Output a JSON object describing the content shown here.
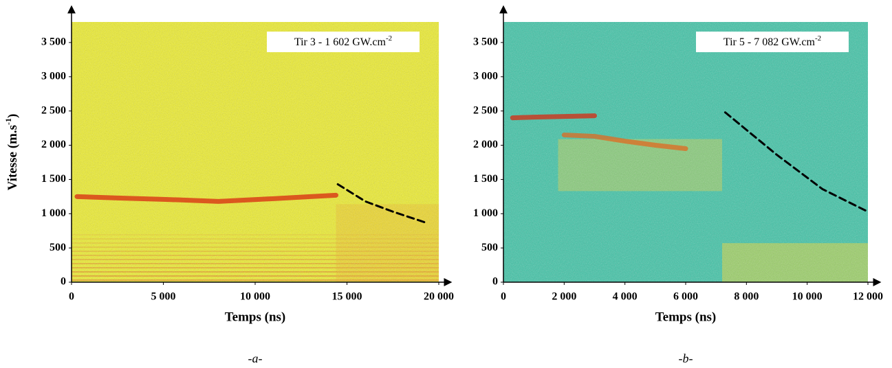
{
  "chart_data": [
    {
      "type": "spectrogram",
      "caption": "-a-",
      "annotation": "Tir 3 - 1 602  GW.cm",
      "annotation_sup": "-2",
      "x_label": "Temps (ns)",
      "y_label": "Vitesse (m.s",
      "y_label_sup": "-1",
      "y_label_end": ")",
      "background": "#eeee2a",
      "xlim": [
        0,
        20000
      ],
      "ylim": [
        0,
        3800
      ],
      "xticks": [
        0,
        {
          "value": 5000,
          "label": "5 000"
        },
        {
          "value": 10000,
          "label": "10 000"
        },
        {
          "value": 15000,
          "label": "15 000"
        },
        {
          "value": 20000,
          "label": "20 000"
        }
      ],
      "yticks": [
        0,
        500,
        {
          "value": 1000,
          "label": "1 000"
        },
        {
          "value": 1500,
          "label": "1 500"
        },
        {
          "value": 2000,
          "label": "2 000"
        },
        {
          "value": 2500,
          "label": "2 500"
        },
        {
          "value": 3000,
          "label": "3 000"
        },
        {
          "value": 3500,
          "label": "3 500"
        }
      ],
      "series": [
        {
          "color": "#d82a10",
          "x": [
            300,
            2500,
            5000,
            8000,
            11000,
            13000,
            14400
          ],
          "values": [
            1250,
            1230,
            1210,
            1180,
            1220,
            1250,
            1270
          ]
        },
        {
          "color": "#000000",
          "dash": true,
          "x": [
            14500,
            16000,
            17500,
            19400
          ],
          "values": [
            1430,
            1180,
            1030,
            860
          ]
        }
      ]
    },
    {
      "type": "spectrogram",
      "caption": "-b-",
      "annotation": "Tir 5 - 7 082  GW.cm",
      "annotation_sup": "-2",
      "x_label": "Temps (ns)",
      "background": "#3cc4a6",
      "xlim": [
        0,
        12000
      ],
      "ylim": [
        0,
        3800
      ],
      "xticks": [
        0,
        {
          "value": 2000,
          "label": "2 000"
        },
        {
          "value": 4000,
          "label": "4 000"
        },
        {
          "value": 6000,
          "label": "6 000"
        },
        {
          "value": 8000,
          "label": "8 000"
        },
        {
          "value": 10000,
          "label": "10 000"
        },
        {
          "value": 12000,
          "label": "12 000"
        }
      ],
      "yticks": [
        0,
        500,
        {
          "value": 1000,
          "label": "1 000"
        },
        {
          "value": 1500,
          "label": "1 500"
        },
        {
          "value": 2000,
          "label": "2 000"
        },
        {
          "value": 2500,
          "label": "2 500"
        },
        {
          "value": 3000,
          "label": "3 000"
        },
        {
          "value": 3500,
          "label": "3 500"
        }
      ],
      "series": [
        {
          "color": "#d82a10",
          "x": [
            300,
            1000,
            2000,
            3000
          ],
          "values": [
            2400,
            2410,
            2420,
            2430
          ]
        },
        {
          "color": "#e06a20",
          "x": [
            2000,
            3000,
            4000,
            5000,
            6000
          ],
          "values": [
            2150,
            2130,
            2060,
            2000,
            1950
          ]
        },
        {
          "color": "#000000",
          "dash": true,
          "x": [
            7300,
            9000,
            10500,
            11950
          ],
          "values": [
            2480,
            1860,
            1360,
            1040
          ]
        }
      ]
    }
  ]
}
